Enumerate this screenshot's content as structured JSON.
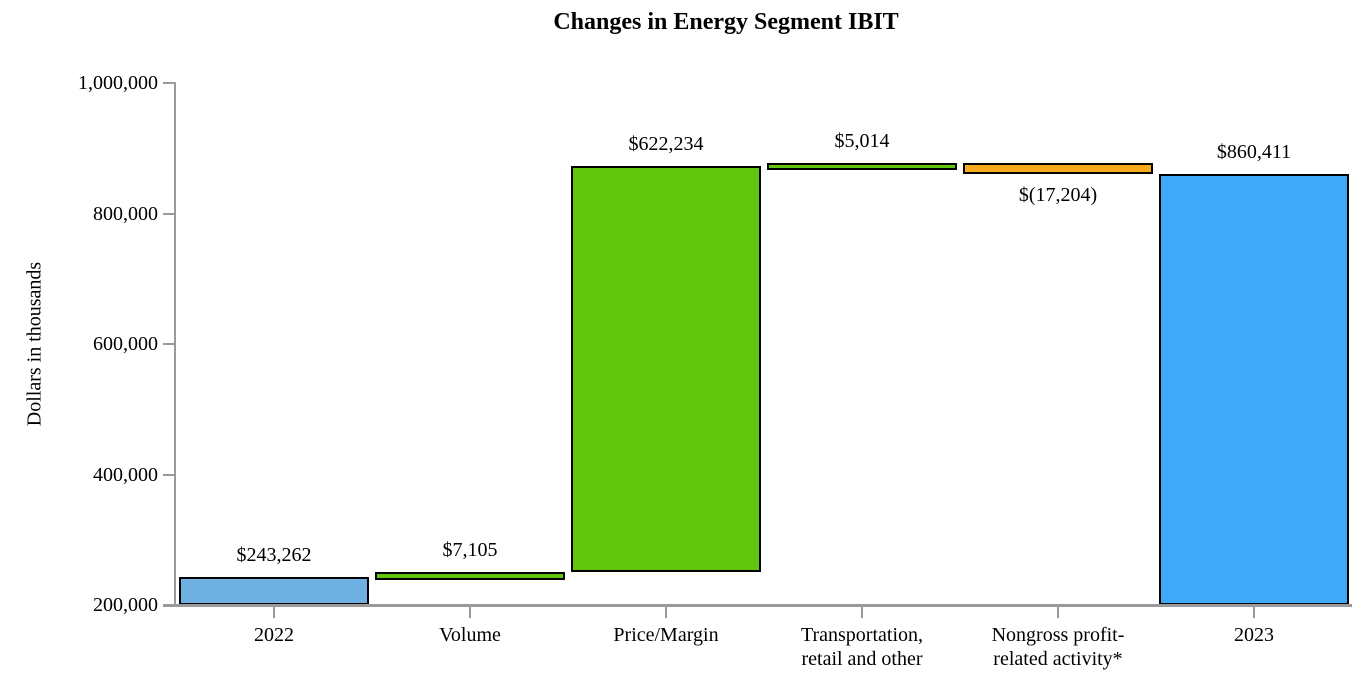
{
  "chart_data": {
    "type": "bar",
    "subtype": "waterfall",
    "title": "Changes in Energy Segment IBIT",
    "ylabel": "Dollars in thousands",
    "xlabel": "",
    "ylim": [
      200000,
      1000000
    ],
    "grid": false,
    "legend": false,
    "axis_color": "#9a9a9a",
    "bar_border_color": "#000000",
    "yticks": [
      {
        "value": 200000,
        "label": "200,000"
      },
      {
        "value": 400000,
        "label": "400,000"
      },
      {
        "value": 600000,
        "label": "600,000"
      },
      {
        "value": 800000,
        "label": "800,000"
      },
      {
        "value": 1000000,
        "label": "1,000,000"
      }
    ],
    "categories": [
      "2022",
      "Volume",
      "Price/Margin",
      "Transportation, retail and other",
      "Nongross profit-related activity*",
      "2023"
    ],
    "bars": [
      {
        "label_lines": [
          "2022"
        ],
        "kind": "total",
        "start": 200000,
        "end": 243262,
        "change": 243262,
        "value_label": "$243,262",
        "color": "#6fb0e2",
        "label_position": "above"
      },
      {
        "label_lines": [
          "Volume"
        ],
        "kind": "increase",
        "start": 243262,
        "end": 250367,
        "change": 7105,
        "value_label": "$7,105",
        "color": "#62c60e",
        "label_position": "above"
      },
      {
        "label_lines": [
          "Price/Margin"
        ],
        "kind": "increase",
        "start": 250367,
        "end": 872601,
        "change": 622234,
        "value_label": "$622,234",
        "color": "#62c60e",
        "label_position": "above"
      },
      {
        "label_lines": [
          "Transportation,",
          "retail and other"
        ],
        "kind": "increase",
        "start": 872601,
        "end": 877615,
        "change": 5014,
        "value_label": "$5,014",
        "color": "#62c60e",
        "label_position": "above"
      },
      {
        "label_lines": [
          "Nongross profit-",
          "related activity*"
        ],
        "kind": "decrease",
        "start": 877615,
        "end": 860411,
        "change": -17204,
        "value_label": "$(17,204)",
        "color": "#f7ab1c",
        "label_position": "below"
      },
      {
        "label_lines": [
          "2023"
        ],
        "kind": "total",
        "start": 200000,
        "end": 860411,
        "change": 860411,
        "value_label": "$860,411",
        "color": "#3fa9f8",
        "label_position": "above"
      }
    ]
  }
}
